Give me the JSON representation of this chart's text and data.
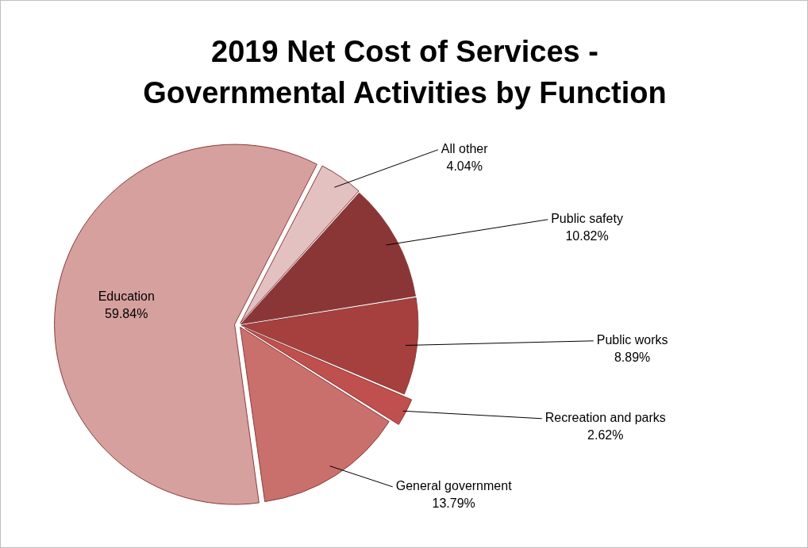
{
  "chart_data": {
    "type": "pie",
    "title": "2019 Net Cost of Services - Governmental Activities by Function",
    "categories": [
      "Education",
      "All other",
      "Public safety",
      "Public works",
      "Recreation and parks",
      "General government"
    ],
    "values": [
      59.84,
      4.04,
      10.82,
      8.89,
      2.62,
      13.79
    ],
    "value_labels": [
      "59.84%",
      "4.04%",
      "10.82%",
      "8.89%",
      "2.62%",
      "13.79%"
    ],
    "colors": [
      "#d6a09f",
      "#e3c1c1",
      "#8b3636",
      "#a6403e",
      "#c0504d",
      "#c9706d"
    ],
    "legend": false
  }
}
